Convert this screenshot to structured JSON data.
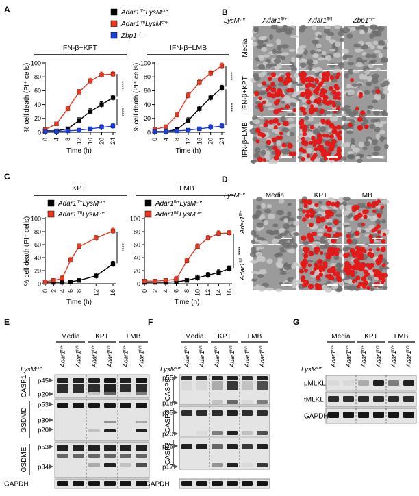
{
  "panels": {
    "A": {
      "letter": "A",
      "legend": [
        {
          "gene": "Adar1",
          "sup1": "fl/+",
          "mid": "LysM",
          "sup2": "cre",
          "color": "#000000"
        },
        {
          "gene": "Adar1",
          "sup1": "fl/fl",
          "mid": "LysM",
          "sup2": "cre",
          "color": "#e8391e"
        },
        {
          "gene": "Zbp1",
          "sup1": "−/−",
          "mid": "",
          "sup2": "",
          "color": "#1a3fe0"
        }
      ],
      "ylabel": "% cell death (PI⁺ cells)",
      "xlabel": "Time (h)",
      "sig": "****"
    },
    "B": {
      "letter": "B",
      "col_head": [
        "Adar1fl/+",
        "Adar1fl/fl",
        "Zbp1−/−"
      ],
      "row_labels": [
        "Media",
        "IFN-β+KPT",
        "IFN-β+LMB"
      ],
      "prefix": "LysMcre"
    },
    "C": {
      "letter": "C",
      "legend": [
        {
          "gene": "Adar1",
          "sup1": "fl/+",
          "mid": "LysM",
          "sup2": "cre",
          "color": "#000000"
        },
        {
          "gene": "Adar1",
          "sup1": "fl/fl",
          "mid": "LysM",
          "sup2": "cre",
          "color": "#e8391e"
        }
      ],
      "ylabel": "% cell death (PI⁺ cells)",
      "xlabel": "Time (h)",
      "sig": "****"
    },
    "D": {
      "letter": "D",
      "prefix": "LysMcre",
      "col_head": [
        "Media",
        "KPT",
        "LMB"
      ],
      "row_labels": [
        "Adar1fl/+",
        "Adar1fl/fl"
      ]
    },
    "E": {
      "letter": "E",
      "groups": [
        "Media",
        "KPT",
        "LMB"
      ],
      "lanes": [
        "Adar1fl/+",
        "Adar1fl/fl",
        "Adar1fl/+",
        "Adar1fl/fl",
        "Adar1fl/+",
        "Adar1fl/fl"
      ],
      "prefix": "LysMcre",
      "blots": [
        {
          "name": "CASP1",
          "markers": [
            "p45",
            "p20"
          ]
        },
        {
          "name": "GSDMD",
          "markers": [
            "p53",
            "p30",
            "p20"
          ]
        },
        {
          "name": "GSDME",
          "markers": [
            "p53",
            "p34"
          ]
        },
        {
          "name": "GAPDH",
          "markers": []
        }
      ]
    },
    "F": {
      "letter": "F",
      "groups": [
        "Media",
        "KPT",
        "LMB"
      ],
      "lanes": [
        "Adar1fl/+",
        "Adar1fl/fl",
        "Adar1fl/+",
        "Adar1fl/fl",
        "Adar1fl/+",
        "Adar1fl/fl"
      ],
      "prefix": "LysMcre",
      "blots": [
        {
          "name": "CASP8",
          "markers": [
            "p55",
            "p18"
          ]
        },
        {
          "name": "CASP7",
          "markers": [
            "p35",
            "p20"
          ]
        },
        {
          "name": "CASP3",
          "markers": [
            "p35",
            "p17"
          ]
        },
        {
          "name": "GAPDH",
          "markers": []
        }
      ]
    },
    "G": {
      "letter": "G",
      "groups": [
        "Media",
        "KPT",
        "LMB"
      ],
      "lanes": [
        "Adar1fl/+",
        "Adar1fl/fl",
        "Adar1fl/+",
        "Adar1fl/fl",
        "Adar1fl/+",
        "Adar1fl/fl"
      ],
      "prefix": "LysMcre",
      "blots": [
        {
          "name": "pMLKL",
          "markers": []
        },
        {
          "name": "tMLKL",
          "markers": []
        },
        {
          "name": "GAPDH",
          "markers": []
        }
      ]
    }
  },
  "chart_data": [
    {
      "type": "line",
      "title": "IFN-β+KPT",
      "xlabel": "Time (h)",
      "ylabel": "% cell death (PI⁺ cells)",
      "x": [
        0,
        4,
        8,
        12,
        16,
        20,
        24
      ],
      "ylim": [
        0,
        100
      ],
      "yticks": [
        0,
        20,
        40,
        60,
        80,
        100
      ],
      "series": [
        {
          "name": "Adar1fl/+LysMcre",
          "color": "#000000",
          "values": [
            2,
            2,
            5,
            17,
            30,
            40,
            50
          ]
        },
        {
          "name": "Adar1fl/flLysMcre",
          "color": "#e8391e",
          "values": [
            4,
            12,
            34,
            58,
            74,
            83,
            84
          ]
        },
        {
          "name": "Zbp1−/−",
          "color": "#1a3fe0",
          "values": [
            1,
            1,
            2,
            3,
            5,
            7,
            9
          ]
        }
      ]
    },
    {
      "type": "line",
      "title": "IFN-β+LMB",
      "xlabel": "Time (h)",
      "ylabel": "% cell death (PI⁺ cells)",
      "x": [
        0,
        4,
        8,
        12,
        16,
        20,
        24
      ],
      "ylim": [
        0,
        100
      ],
      "yticks": [
        0,
        20,
        40,
        60,
        80,
        100
      ],
      "series": [
        {
          "name": "Adar1fl/+LysMcre",
          "color": "#000000",
          "values": [
            1,
            1,
            4,
            17,
            34,
            50,
            64
          ]
        },
        {
          "name": "Adar1fl/flLysMcre",
          "color": "#e8391e",
          "values": [
            4,
            8,
            25,
            53,
            72,
            85,
            96
          ]
        },
        {
          "name": "Zbp1−/−",
          "color": "#1a3fe0",
          "values": [
            1,
            1,
            2,
            3,
            5,
            7,
            9
          ]
        }
      ]
    },
    {
      "type": "line",
      "title": "KPT",
      "xlabel": "Time (h)",
      "ylabel": "% cell death (PI⁺ cells)",
      "x": [
        0,
        2,
        4,
        6,
        8,
        12,
        16
      ],
      "ylim": [
        0,
        100
      ],
      "yticks": [
        0,
        20,
        40,
        60,
        80,
        100
      ],
      "series": [
        {
          "name": "Adar1fl/+LysMcre",
          "color": "#000000",
          "values": [
            2,
            2,
            2,
            3,
            5,
            12,
            30
          ]
        },
        {
          "name": "Adar1fl/flLysMcre",
          "color": "#e8391e",
          "values": [
            3,
            5,
            8,
            36,
            57,
            70,
            81
          ]
        }
      ]
    },
    {
      "type": "line",
      "title": "LMB",
      "xlabel": "Time (h)",
      "ylabel": "% cell death (PI⁺ cells)",
      "x": [
        0,
        2,
        4,
        6,
        8,
        10,
        12,
        14,
        16
      ],
      "ylim": [
        0,
        100
      ],
      "yticks": [
        0,
        20,
        40,
        60,
        80,
        100
      ],
      "series": [
        {
          "name": "Adar1fl/+LysMcre",
          "color": "#000000",
          "values": [
            2,
            2,
            2,
            3,
            5,
            9,
            13,
            17,
            23
          ]
        },
        {
          "name": "Adar1fl/flLysMcre",
          "color": "#e8391e",
          "values": [
            4,
            4,
            5,
            7,
            35,
            57,
            70,
            77,
            78
          ]
        }
      ]
    }
  ]
}
